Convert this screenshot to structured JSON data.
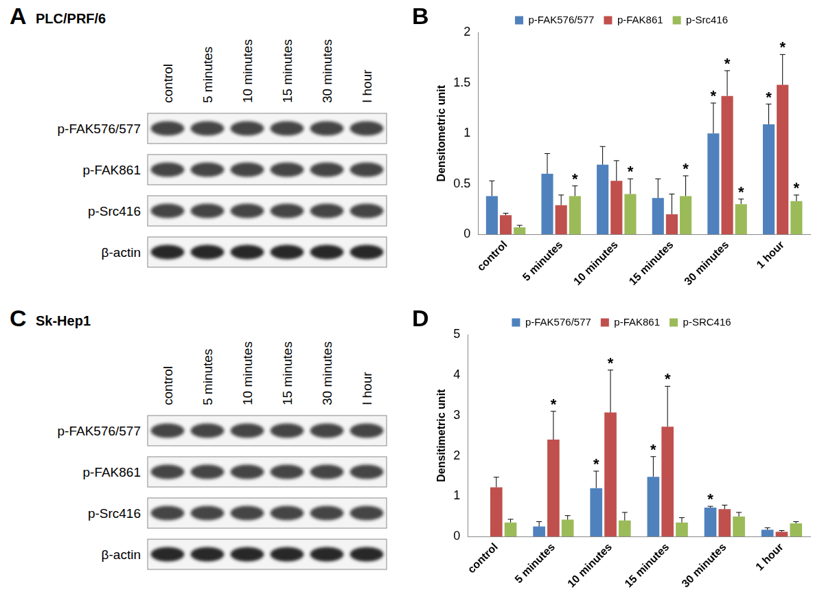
{
  "blots": [
    {
      "panel_label": "A",
      "cell_line": "PLC/PRF/6",
      "lanes": [
        "control",
        "5 minutes",
        "10 minutes",
        "15 minutes",
        "30 minutes",
        "I hour"
      ],
      "rows": [
        "p-FAK576/577",
        "p-FAK861",
        "p-Src416",
        "β-actin"
      ]
    },
    {
      "panel_label": "C",
      "cell_line": "Sk-Hep1",
      "lanes": [
        "control",
        "5 minutes",
        "10 minutes",
        "15 minutes",
        "30 minutes",
        "I hour"
      ],
      "rows": [
        "p-FAK576/577",
        "p-FAK861",
        "p-Src416",
        "β-actin"
      ]
    }
  ],
  "chart_data": [
    {
      "type": "bar",
      "panel_label": "B",
      "y_label": "Densitometric unit",
      "categories": [
        "control",
        "5 minutes",
        "10 minutes",
        "15 minutes",
        "30 minutes",
        "1 hour"
      ],
      "ylim": [
        0,
        2
      ],
      "yticks": [
        0,
        0.5,
        1,
        1.5,
        2
      ],
      "grid": false,
      "legend": "top",
      "significance_label": "*",
      "series": [
        {
          "name": "p-FAK576/577",
          "color": "#4f81bd",
          "values": [
            0.38,
            0.6,
            0.69,
            0.36,
            1.0,
            1.09
          ],
          "errors": [
            0.15,
            0.2,
            0.18,
            0.19,
            0.3,
            0.2
          ],
          "significant": [
            false,
            false,
            false,
            false,
            true,
            true
          ]
        },
        {
          "name": "p-FAK861",
          "color": "#c0504d",
          "values": [
            0.19,
            0.29,
            0.53,
            0.2,
            1.37,
            1.48
          ],
          "errors": [
            0.02,
            0.1,
            0.2,
            0.2,
            0.25,
            0.3
          ],
          "significant": [
            false,
            false,
            false,
            false,
            true,
            true
          ]
        },
        {
          "name": "p-Src416",
          "color": "#9bbb59",
          "values": [
            0.07,
            0.38,
            0.4,
            0.38,
            0.3,
            0.33
          ],
          "errors": [
            0.02,
            0.1,
            0.15,
            0.2,
            0.05,
            0.06
          ],
          "significant": [
            false,
            true,
            true,
            true,
            true,
            true
          ]
        }
      ]
    },
    {
      "type": "bar",
      "panel_label": "D",
      "y_label": "Densitimetric unit",
      "categories": [
        "control",
        "5 minutes",
        "10 minutes",
        "15 minutes",
        "30 minutes",
        "1 hour"
      ],
      "ylim": [
        0,
        5
      ],
      "yticks": [
        0,
        1,
        2,
        3,
        4,
        5
      ],
      "grid": false,
      "legend": "top",
      "significance_label": "*",
      "series": [
        {
          "name": "p-FAK576/577",
          "color": "#4f81bd",
          "values": [
            0,
            0.25,
            1.2,
            1.48,
            0.72,
            0.17
          ],
          "errors": [
            0,
            0.12,
            0.42,
            0.5,
            0.03,
            0.05
          ],
          "significant": [
            false,
            false,
            true,
            true,
            true,
            false
          ]
        },
        {
          "name": "p-FAK861",
          "color": "#c0504d",
          "values": [
            1.22,
            2.4,
            3.07,
            2.72,
            0.68,
            0.12
          ],
          "errors": [
            0.25,
            0.7,
            1.05,
            1.0,
            0.1,
            0.03
          ],
          "significant": [
            false,
            true,
            true,
            true,
            false,
            false
          ]
        },
        {
          "name": "p-SRC416",
          "color": "#9bbb59",
          "values": [
            0.35,
            0.42,
            0.4,
            0.35,
            0.5,
            0.33
          ],
          "errors": [
            0.08,
            0.1,
            0.2,
            0.12,
            0.1,
            0.04
          ],
          "significant": [
            false,
            false,
            false,
            false,
            false,
            false
          ]
        }
      ]
    }
  ]
}
